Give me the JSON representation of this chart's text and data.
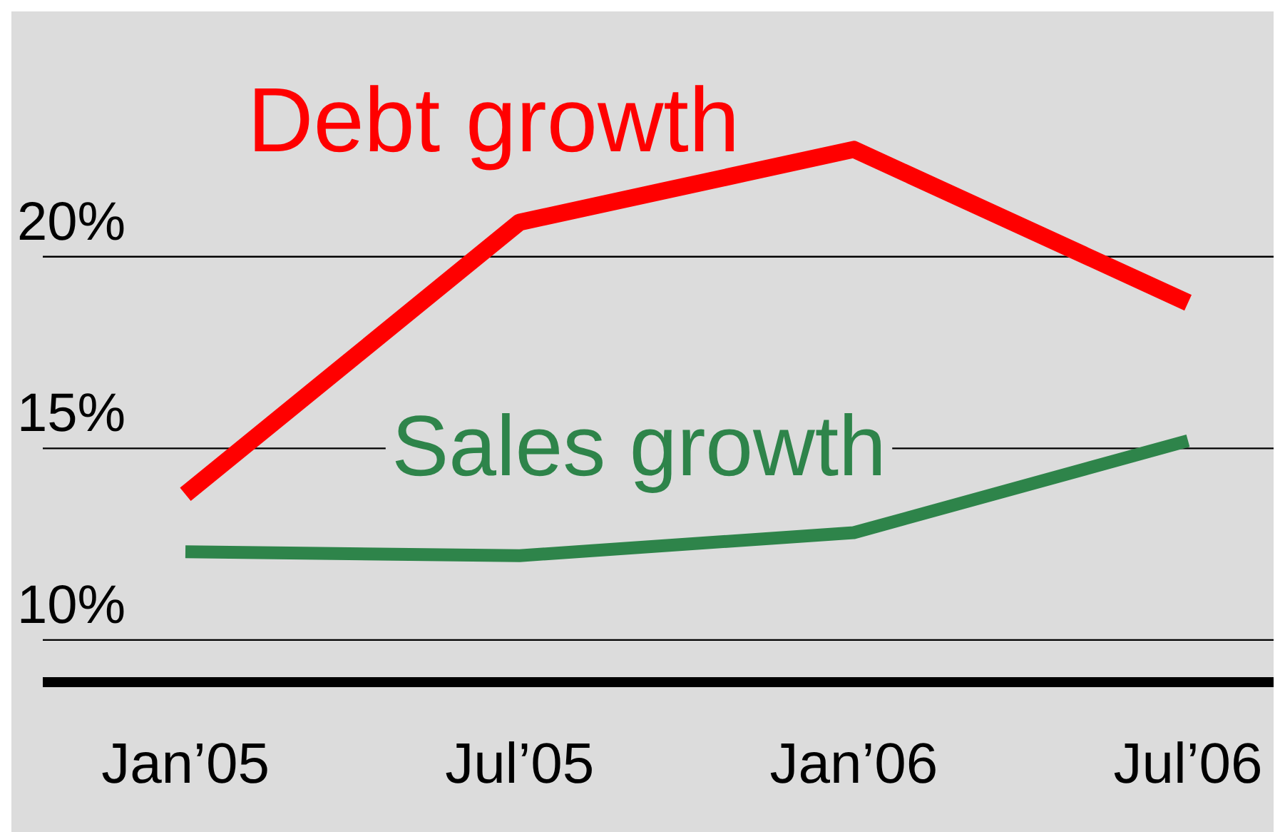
{
  "chart_data": {
    "type": "line",
    "categories": [
      "Jan’05",
      "Jul’05",
      "Jan’06",
      "Jul’06"
    ],
    "series": [
      {
        "name": "Debt growth",
        "color": "#ff0000",
        "values": [
          13.8,
          20.9,
          22.8,
          18.8
        ]
      },
      {
        "name": "Sales growth",
        "color": "#2e844a",
        "values": [
          12.3,
          12.2,
          12.8,
          15.2
        ]
      }
    ],
    "ylim": [
      8.9,
      26.4
    ],
    "yticks": [
      {
        "value": 10,
        "label": "10%"
      },
      {
        "value": 15,
        "label": "15%"
      },
      {
        "value": 20,
        "label": "20%"
      }
    ],
    "grid": "y",
    "marker": "none",
    "line_style": "solid"
  }
}
